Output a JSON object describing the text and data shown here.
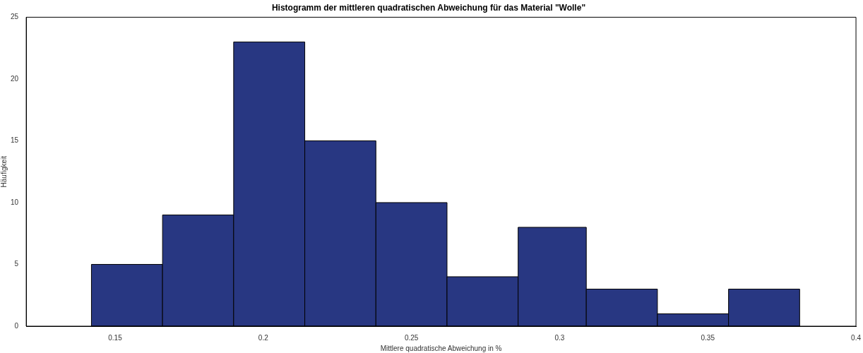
{
  "chart_data": {
    "type": "histogram",
    "title": "Histogramm der mittleren quadratischen Abweichung für das Material \"Wolle\"",
    "xlabel": "Mittlere quadratische Abweichung in %",
    "ylabel": "Häufigkeit",
    "bins": [
      0.142,
      0.166,
      0.19,
      0.214,
      0.238,
      0.262,
      0.286,
      0.309,
      0.333,
      0.357,
      0.381
    ],
    "values": [
      5,
      9,
      23,
      15,
      10,
      4,
      8,
      3,
      1,
      3
    ],
    "color": "#283782",
    "xlim": [
      0.12,
      0.4
    ],
    "xticks": [
      {
        "value": 0.15,
        "label": "0.15"
      },
      {
        "value": 0.2,
        "label": "0.2"
      },
      {
        "value": 0.25,
        "label": "0.25"
      },
      {
        "value": 0.3,
        "label": "0.3"
      },
      {
        "value": 0.35,
        "label": "0.35"
      },
      {
        "value": 0.4,
        "label": "0.4"
      }
    ],
    "ylim": [
      0,
      25
    ],
    "yticks": [
      0,
      5,
      10,
      15,
      20,
      25
    ],
    "grid": false
  }
}
